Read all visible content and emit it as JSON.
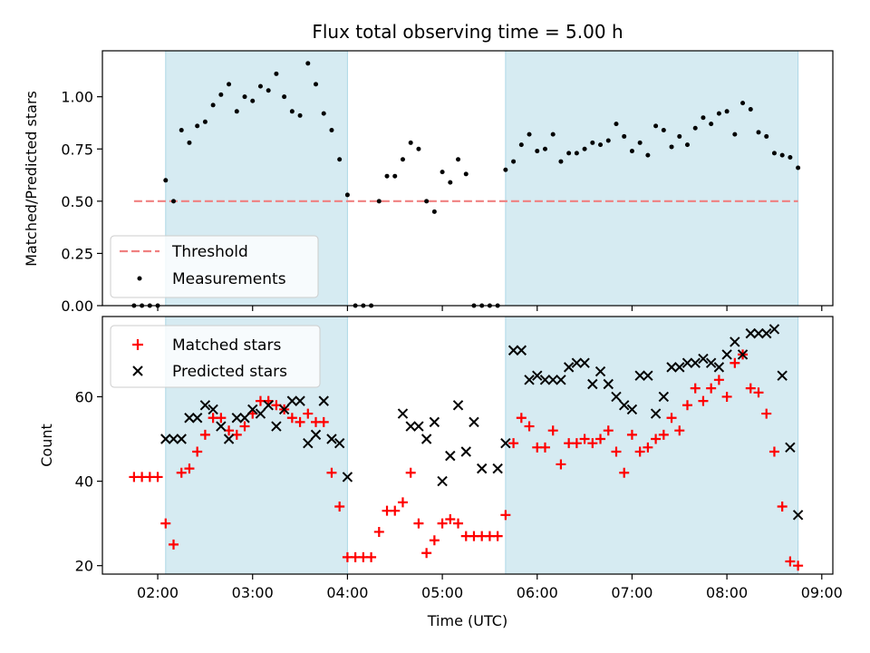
{
  "chart_data": [
    {
      "type": "scatter",
      "title": "Flux total observing time = 5.00 h",
      "xlabel": "",
      "ylabel": "Matched/Predicted stars",
      "ylim": [
        0,
        1.22
      ],
      "yticks": [
        "0.00",
        "0.25",
        "0.50",
        "0.75",
        "1.00"
      ],
      "ytick_values": [
        0,
        0.25,
        0.5,
        0.75,
        1.0
      ],
      "xlim": [
        "01:25",
        "09:07"
      ],
      "legend_position": "lower-left",
      "shaded_intervals": [
        [
          "02:05",
          "04:00"
        ],
        [
          "05:40",
          "08:45"
        ]
      ],
      "threshold": {
        "name": "Threshold",
        "y": 0.5,
        "x_range": [
          "01:45",
          "08:45"
        ],
        "color": "#f08080"
      },
      "series": [
        {
          "name": "Measurements",
          "color": "#000000",
          "x": [
            "01:45",
            "01:50",
            "01:55",
            "02:00",
            "02:05",
            "02:10",
            "02:15",
            "02:20",
            "02:25",
            "02:30",
            "02:35",
            "02:40",
            "02:45",
            "02:50",
            "02:55",
            "03:00",
            "03:05",
            "03:10",
            "03:15",
            "03:20",
            "03:25",
            "03:30",
            "03:35",
            "03:40",
            "03:45",
            "03:50",
            "03:55",
            "04:00",
            "04:05",
            "04:10",
            "04:15",
            "04:20",
            "04:25",
            "04:30",
            "04:35",
            "04:40",
            "04:45",
            "04:50",
            "04:55",
            "05:00",
            "05:05",
            "05:10",
            "05:15",
            "05:20",
            "05:25",
            "05:30",
            "05:35",
            "05:40",
            "05:45",
            "05:50",
            "05:55",
            "06:00",
            "06:05",
            "06:10",
            "06:15",
            "06:20",
            "06:25",
            "06:30",
            "06:35",
            "06:40",
            "06:45",
            "06:50",
            "06:55",
            "07:00",
            "07:05",
            "07:10",
            "07:15",
            "07:20",
            "07:25",
            "07:30",
            "07:35",
            "07:40",
            "07:45",
            "07:50",
            "07:55",
            "08:00",
            "08:05",
            "08:10",
            "08:15",
            "08:20",
            "08:25",
            "08:30",
            "08:35",
            "08:40",
            "08:45"
          ],
          "y": [
            0.0,
            0.0,
            0.0,
            0.0,
            0.6,
            0.5,
            0.84,
            0.78,
            0.86,
            0.88,
            0.96,
            1.01,
            1.06,
            0.93,
            1.0,
            0.98,
            1.05,
            1.03,
            1.11,
            1.0,
            0.93,
            0.91,
            1.16,
            1.06,
            0.92,
            0.84,
            0.7,
            0.53,
            0.0,
            0.0,
            0.0,
            0.5,
            0.62,
            0.62,
            0.7,
            0.78,
            0.75,
            0.5,
            0.45,
            0.64,
            0.59,
            0.7,
            0.63,
            0.0,
            0.0,
            0.0,
            0.0,
            0.65,
            0.69,
            0.77,
            0.82,
            0.74,
            0.75,
            0.82,
            0.69,
            0.73,
            0.73,
            0.75,
            0.78,
            0.77,
            0.79,
            0.87,
            0.81,
            0.74,
            0.78,
            0.72,
            0.86,
            0.84,
            0.76,
            0.81,
            0.77,
            0.85,
            0.9,
            0.87,
            0.92,
            0.93,
            0.82,
            0.97,
            0.94,
            0.83,
            0.81,
            0.73,
            0.72,
            0.71,
            0.66
          ]
        }
      ]
    },
    {
      "type": "scatter",
      "title": "",
      "xlabel": "Time (UTC)",
      "ylabel": "Count",
      "ylim": [
        18,
        79
      ],
      "yticks": [
        "20",
        "40",
        "60"
      ],
      "ytick_values": [
        20,
        40,
        60
      ],
      "xlim": [
        "01:25",
        "09:07"
      ],
      "xticks": [
        "02:00",
        "03:00",
        "04:00",
        "05:00",
        "06:00",
        "07:00",
        "08:00",
        "09:00"
      ],
      "legend_position": "upper-left",
      "shaded_intervals": [
        [
          "02:05",
          "04:00"
        ],
        [
          "05:40",
          "08:45"
        ]
      ],
      "series": [
        {
          "name": "Matched stars",
          "color": "#ff0000",
          "marker": "plus",
          "x": [
            "01:45",
            "01:50",
            "01:55",
            "02:00",
            "02:05",
            "02:10",
            "02:15",
            "02:20",
            "02:25",
            "02:30",
            "02:35",
            "02:40",
            "02:45",
            "02:50",
            "02:55",
            "03:00",
            "03:05",
            "03:10",
            "03:15",
            "03:20",
            "03:25",
            "03:30",
            "03:35",
            "03:40",
            "03:45",
            "03:50",
            "03:55",
            "04:00",
            "04:05",
            "04:10",
            "04:15",
            "04:20",
            "04:25",
            "04:30",
            "04:35",
            "04:40",
            "04:45",
            "04:50",
            "04:55",
            "05:00",
            "05:05",
            "05:10",
            "05:15",
            "05:20",
            "05:25",
            "05:30",
            "05:35",
            "05:40",
            "05:45",
            "05:50",
            "05:55",
            "06:00",
            "06:05",
            "06:10",
            "06:15",
            "06:20",
            "06:25",
            "06:30",
            "06:35",
            "06:40",
            "06:45",
            "06:50",
            "06:55",
            "07:00",
            "07:05",
            "07:10",
            "07:15",
            "07:20",
            "07:25",
            "07:30",
            "07:35",
            "07:40",
            "07:45",
            "07:50",
            "07:55",
            "08:00",
            "08:05",
            "08:10",
            "08:15",
            "08:20",
            "08:25",
            "08:30",
            "08:35",
            "08:40",
            "08:45"
          ],
          "y": [
            41,
            41,
            41,
            41,
            30,
            25,
            42,
            43,
            47,
            51,
            55,
            55,
            52,
            51,
            53,
            56,
            59,
            59,
            58,
            57,
            55,
            54,
            56,
            54,
            54,
            42,
            34,
            22,
            22,
            22,
            22,
            28,
            33,
            33,
            35,
            42,
            30,
            23,
            26,
            30,
            31,
            30,
            27,
            27,
            27,
            27,
            27,
            32,
            49,
            55,
            53,
            48,
            48,
            52,
            44,
            49,
            49,
            50,
            49,
            50,
            52,
            47,
            42,
            51,
            47,
            48,
            50,
            51,
            55,
            52,
            58,
            62,
            59,
            62,
            64,
            60,
            68,
            70,
            62,
            61,
            56,
            47,
            34,
            21,
            20
          ]
        },
        {
          "name": "Predicted stars",
          "color": "#000000",
          "marker": "x",
          "x": [
            "02:05",
            "02:10",
            "02:15",
            "02:20",
            "02:25",
            "02:30",
            "02:35",
            "02:40",
            "02:45",
            "02:50",
            "02:55",
            "03:00",
            "03:05",
            "03:10",
            "03:15",
            "03:20",
            "03:25",
            "03:30",
            "03:35",
            "03:40",
            "03:45",
            "03:50",
            "03:55",
            "04:00",
            "04:35",
            "04:40",
            "04:45",
            "04:50",
            "04:55",
            "05:00",
            "05:05",
            "05:10",
            "05:15",
            "05:20",
            "05:25",
            "05:35",
            "05:40",
            "05:45",
            "05:50",
            "05:55",
            "06:00",
            "06:05",
            "06:10",
            "06:15",
            "06:20",
            "06:25",
            "06:30",
            "06:35",
            "06:40",
            "06:45",
            "06:50",
            "06:55",
            "07:00",
            "07:05",
            "07:10",
            "07:15",
            "07:20",
            "07:25",
            "07:30",
            "07:35",
            "07:40",
            "07:45",
            "07:50",
            "07:55",
            "08:00",
            "08:05",
            "08:10",
            "08:15",
            "08:20",
            "08:25",
            "08:30",
            "08:35",
            "08:40",
            "08:45"
          ],
          "y": [
            50,
            50,
            50,
            55,
            55,
            58,
            57,
            53,
            50,
            55,
            55,
            57,
            56,
            58,
            53,
            57,
            59,
            59,
            49,
            51,
            59,
            50,
            49,
            41,
            56,
            53,
            53,
            50,
            54,
            40,
            46,
            58,
            47,
            54,
            43,
            43,
            49,
            71,
            71,
            64,
            65,
            64,
            64,
            64,
            67,
            68,
            68,
            63,
            66,
            63,
            60,
            58,
            57,
            65,
            65,
            56,
            60,
            67,
            67,
            68,
            68,
            69,
            68,
            67,
            70,
            73,
            70,
            75,
            75,
            75,
            76,
            65,
            48,
            32
          ]
        }
      ]
    }
  ]
}
